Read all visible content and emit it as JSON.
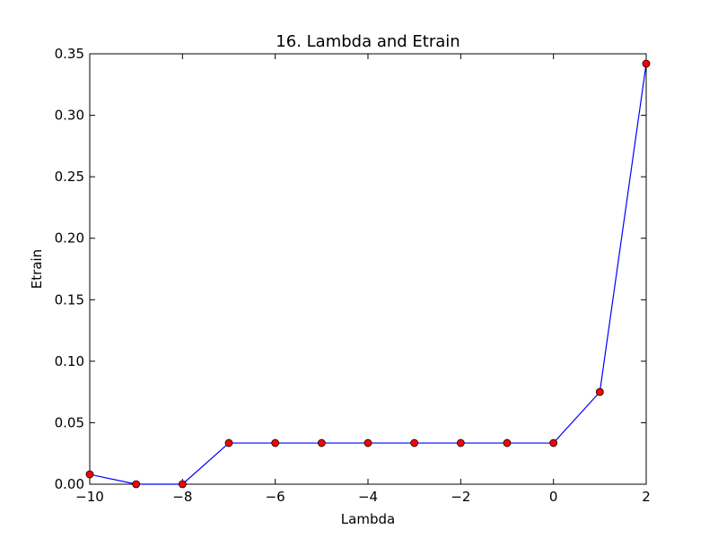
{
  "chart_data": {
    "type": "line",
    "title": "16. Lambda and Etrain",
    "xlabel": "Lambda",
    "ylabel": "Etrain",
    "xlim": [
      -10,
      2
    ],
    "ylim": [
      0,
      0.35
    ],
    "xticks": [
      -10,
      -8,
      -6,
      -4,
      -2,
      0,
      2
    ],
    "xtick_labels": [
      "−10",
      "−8",
      "−6",
      "−4",
      "−2",
      "0",
      "2"
    ],
    "yticks": [
      0,
      0.05,
      0.1,
      0.15,
      0.2,
      0.25,
      0.3,
      0.35
    ],
    "ytick_labels": [
      "0.00",
      "0.05",
      "0.10",
      "0.15",
      "0.20",
      "0.25",
      "0.30",
      "0.35"
    ],
    "grid": false,
    "line_color": "#0000ff",
    "marker_color": "#ff0000",
    "x": [
      -10,
      -9,
      -8,
      -7,
      -6,
      -5,
      -4,
      -3,
      -2,
      -1,
      0,
      1,
      2
    ],
    "y": [
      0.008,
      0.0,
      0.0,
      0.0335,
      0.0335,
      0.0335,
      0.0335,
      0.0335,
      0.0335,
      0.0335,
      0.0335,
      0.075,
      0.342
    ]
  }
}
